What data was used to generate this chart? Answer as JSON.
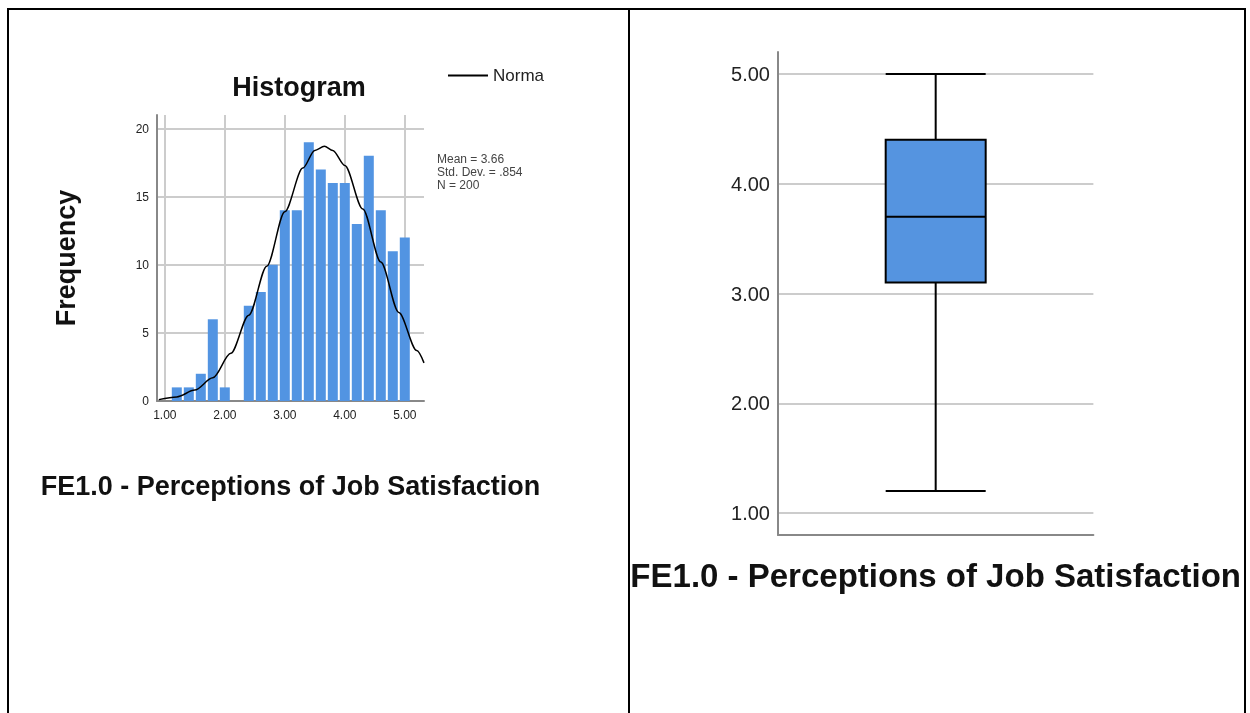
{
  "chart_data": [
    {
      "type": "histogram",
      "title": "Histogram",
      "xlabel": "FE1.0 - Perceptions of Job Satisfaction",
      "ylabel": "Frequency",
      "bins": [
        1.1,
        1.3,
        1.5,
        1.7,
        1.9,
        2.1,
        2.3,
        2.5,
        2.7,
        2.9,
        3.1,
        3.3,
        3.5,
        3.7,
        3.9,
        4.1,
        4.3,
        4.5,
        4.7,
        4.9,
        5.1
      ],
      "series": [
        {
          "type": "histogram",
          "color": "#5294e2",
          "values": [
            1,
            1,
            2,
            6,
            1,
            0,
            7,
            8,
            10,
            14,
            14,
            19,
            17,
            16,
            16,
            13,
            18,
            14,
            11,
            12
          ]
        },
        {
          "type": "line",
          "name": "Norma",
          "color": "#000000",
          "x": [
            0.9,
            1.2,
            1.5,
            1.8,
            2.1,
            2.4,
            2.7,
            3.0,
            3.3,
            3.5,
            3.66,
            3.8,
            4.0,
            4.3,
            4.6,
            4.9,
            5.2,
            5.32
          ],
          "values": [
            0.1,
            0.3,
            0.8,
            1.7,
            3.5,
            6.3,
            9.9,
            13.9,
            17.1,
            18.4,
            18.7,
            18.4,
            17.3,
            14.1,
            10.2,
            6.5,
            3.7,
            2.8
          ]
        }
      ],
      "annotations": [
        "Mean = 3.66",
        "Std. Dev. = .854",
        "N = 200"
      ],
      "xlim": [
        0.87,
        5.32
      ],
      "xticks": [
        {
          "value": 1,
          "label": "1.00"
        },
        {
          "value": 2,
          "label": "2.00"
        },
        {
          "value": 3,
          "label": "3.00"
        },
        {
          "value": 4,
          "label": "4.00"
        },
        {
          "value": 5,
          "label": "5.00"
        }
      ],
      "ylim": [
        0,
        21
      ],
      "yticks": [
        0,
        5,
        10,
        15,
        20
      ],
      "grid": true,
      "legend": "top right",
      "marker": "none",
      "line_style": "solid"
    },
    {
      "type": "box",
      "xlabel": "FE1.0 - Perceptions of Job Satisfaction",
      "categories": [
        null
      ],
      "color": "#5594e0",
      "boxes": [
        {
          "low": 1.2,
          "q1": 3.1,
          "median": 3.7,
          "q3": 4.4,
          "high": 5.0
        }
      ],
      "ylim": [
        0.8,
        5.2
      ],
      "yticks": [
        {
          "value": 1,
          "label": "1.00"
        },
        {
          "value": 2,
          "label": "2.00"
        },
        {
          "value": 3,
          "label": "3.00"
        },
        {
          "value": 4,
          "label": "4.00"
        },
        {
          "value": 5,
          "label": "5.00"
        }
      ],
      "grid": "y"
    }
  ]
}
